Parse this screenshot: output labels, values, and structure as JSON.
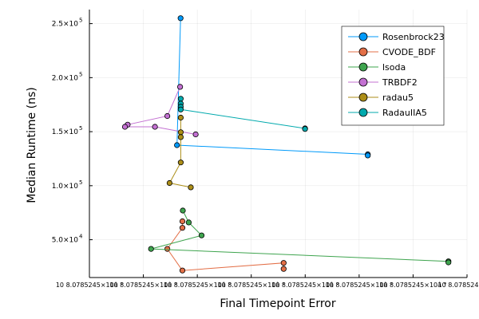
{
  "chart_data": {
    "type": "scatter",
    "title": "",
    "xlabel": "Final Timepoint Error",
    "ylabel": "Median Runtime (ns)",
    "x_scale": "log",
    "xlim": [
      1.08e-11,
      9e-06
    ],
    "ylim": [
      15000,
      263000
    ],
    "grid": true,
    "legend_position": "top-right",
    "x_tick_labels": [
      "10 8.0785245×10â °",
      "10 8.0785245×10â °",
      "10 8.0785245×10â °",
      "10 8.0785245×10â °",
      "10 8.0785245×10â °",
      "10 8.0785245×10â °",
      "10 8.0785245×10â °",
      "10 8.0785245×10"
    ],
    "y_ticks": [
      {
        "value": 50000,
        "label": "5.0×10",
        "exp": "4"
      },
      {
        "value": 100000,
        "label": "1.0×10",
        "exp": "5"
      },
      {
        "value": 150000,
        "label": "1.5×10",
        "exp": "5"
      },
      {
        "value": 200000,
        "label": "2.0×10",
        "exp": "5"
      },
      {
        "value": 250000,
        "label": "2.5×10",
        "exp": "5"
      }
    ],
    "series": [
      {
        "name": "Rosenbrock23",
        "color": "#009AFA",
        "points": [
          [
            2.9e-10,
            255000
          ],
          [
            2.55e-10,
            137500
          ],
          [
            2.5e-07,
            129000
          ],
          [
            2.5e-07,
            128000
          ]
        ]
      },
      {
        "name": "CVODE_BDF",
        "color": "#E36F47",
        "points": [
          [
            3.1e-10,
            67000
          ],
          [
            3.1e-10,
            61000
          ],
          [
            1.8e-10,
            41500
          ],
          [
            3.1e-10,
            21500
          ],
          [
            1.2e-08,
            28500
          ],
          [
            1.2e-08,
            23000
          ]
        ]
      },
      {
        "name": "lsoda",
        "color": "#3EA44E",
        "points": [
          [
            3.15e-10,
            77000
          ],
          [
            3.9e-10,
            66000
          ],
          [
            6.2e-10,
            54000
          ],
          [
            1e-10,
            41500
          ],
          [
            4.6e-06,
            30000
          ],
          [
            4.6e-06,
            29000
          ]
        ]
      },
      {
        "name": "TRBDF2",
        "color": "#C371D2",
        "points": [
          [
            2.85e-10,
            191500
          ],
          [
            1.8e-10,
            164500
          ],
          [
            4.3e-11,
            156500
          ],
          [
            3.9e-11,
            154500
          ],
          [
            1.15e-10,
            154500
          ],
          [
            5e-10,
            147500
          ]
        ]
      },
      {
        "name": "radau5",
        "color": "#AC8E18",
        "points": [
          [
            2.92e-10,
            163000
          ],
          [
            2.92e-10,
            149500
          ],
          [
            2.92e-10,
            145000
          ],
          [
            2.92e-10,
            121500
          ],
          [
            1.95e-10,
            102500
          ],
          [
            4.2e-10,
            98500
          ]
        ]
      },
      {
        "name": "RadauIIA5",
        "color": "#00A9AD",
        "points": [
          [
            2.92e-10,
            180500
          ],
          [
            2.92e-10,
            176000
          ],
          [
            2.92e-10,
            173000
          ],
          [
            2.92e-10,
            170500
          ],
          [
            2.6e-08,
            153000
          ],
          [
            2.6e-08,
            152500
          ]
        ]
      }
    ]
  }
}
